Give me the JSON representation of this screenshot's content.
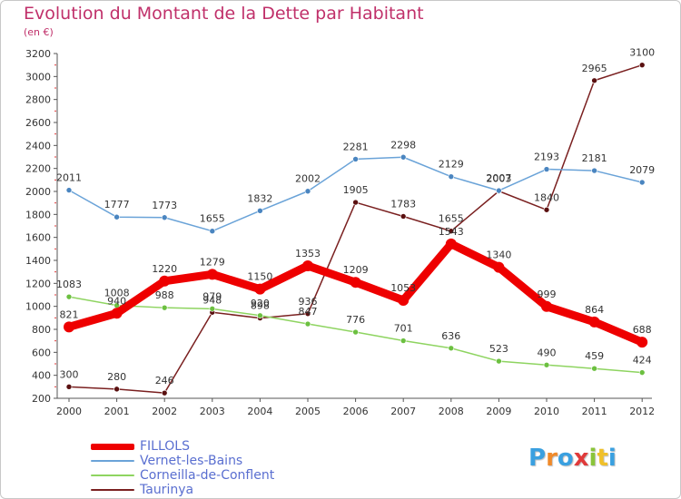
{
  "title": "Evolution du Montant de la Dette par Habitant",
  "subtitle": "(en €)",
  "logo": {
    "letters": [
      "P",
      "r",
      "o",
      "x",
      "i",
      "t",
      "i"
    ],
    "colors": [
      "#3aa0e0",
      "#f08a2a",
      "#3aa0e0",
      "#e03a3a",
      "#8ac43a",
      "#f0c02a",
      "#3aa0e0"
    ]
  },
  "chart_data": {
    "type": "line",
    "title": "Evolution du Montant de la Dette par Habitant",
    "unit": "(en €)",
    "categories": [
      "2000",
      "2001",
      "2002",
      "2003",
      "2004",
      "2005",
      "2006",
      "2007",
      "2008",
      "2009",
      "2010",
      "2011",
      "2012"
    ],
    "ylim": [
      200,
      3200
    ],
    "yticks": [
      200,
      400,
      600,
      800,
      1000,
      1200,
      1400,
      1600,
      1800,
      2000,
      2200,
      2400,
      2600,
      2800,
      3000,
      3200
    ],
    "grid": false,
    "legend_position": "bottom-left",
    "series": [
      {
        "name": "FILLOLS",
        "color": "#ee0000",
        "values": [
          821,
          940,
          1220,
          1279,
          1150,
          1353,
          1209,
          1053,
          1543,
          1340,
          999,
          864,
          688
        ]
      },
      {
        "name": "Vernet-les-Bains",
        "color": "#6aa3d8",
        "values": [
          2011,
          1777,
          1773,
          1655,
          1832,
          2002,
          2281,
          2298,
          2129,
          2007,
          2193,
          2181,
          2079
        ]
      },
      {
        "name": "Corneilla-de-Conflent",
        "color": "#8ed460",
        "values": [
          1083,
          1008,
          988,
          979,
          920,
          847,
          776,
          701,
          636,
          523,
          490,
          459,
          424
        ]
      },
      {
        "name": "Taurinya",
        "color": "#7a2020",
        "values": [
          300,
          280,
          246,
          948,
          898,
          936,
          1905,
          1783,
          1655,
          2003,
          1840,
          2965,
          3100
        ]
      }
    ]
  }
}
